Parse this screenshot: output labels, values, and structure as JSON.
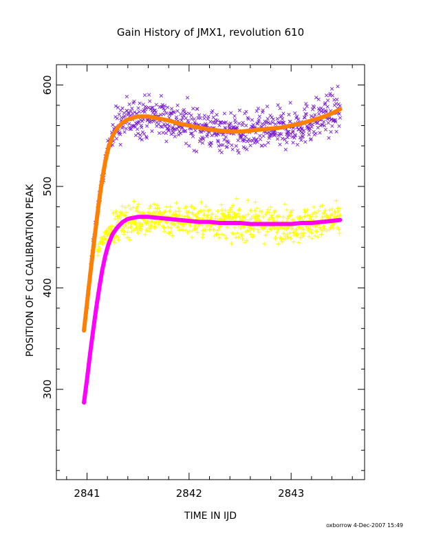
{
  "chart_data": {
    "type": "scatter",
    "title": "Gain History of JMX1, revolution 610",
    "xlabel": "TIME IN IJD",
    "ylabel": "POSITION OF Cd CALIBRATION PEAK",
    "xlim": [
      2840.7,
      2843.72
    ],
    "ylim": [
      211,
      620
    ],
    "xticks": [
      2841,
      2842,
      2843
    ],
    "xtick_labels": [
      "2841",
      "2842",
      "2843"
    ],
    "yticks": [
      300,
      400,
      500,
      600
    ],
    "ytick_labels": [
      "300",
      "400",
      "500",
      "600"
    ],
    "grid": false,
    "legend": "none",
    "footer": "oxborrow  4-Dec-2007 15:49",
    "colors": {
      "upper_points": "#7a1fd0",
      "upper_fit": "#ff7f00",
      "lower_points": "#ffff00",
      "lower_fit": "#ff00ff",
      "axes": "#000000"
    },
    "series": [
      {
        "marker": "x",
        "role": "upper_points",
        "x": [
          2840.98,
          2841.02,
          2841.06,
          2841.1,
          2841.14,
          2841.18,
          2841.22,
          2841.26,
          2841.3,
          2841.4,
          2841.5,
          2841.6,
          2841.7,
          2841.8,
          2841.9,
          2842.0,
          2842.1,
          2842.2,
          2842.3,
          2842.4,
          2842.5,
          2842.6,
          2842.7,
          2842.8,
          2842.9,
          2843.0,
          2843.1,
          2843.2,
          2843.3,
          2843.4,
          2843.48
        ],
        "y": [
          365,
          405,
          440,
          475,
          500,
          525,
          545,
          555,
          560,
          566,
          568,
          570,
          569,
          566,
          563,
          561,
          559,
          557,
          555,
          553,
          553,
          553,
          554,
          555,
          556,
          558,
          561,
          564,
          568,
          572,
          575
        ],
        "scatter": 22
      },
      {
        "marker": "line",
        "role": "upper_fit",
        "x": [
          2840.97,
          2841.0,
          2841.03,
          2841.06,
          2841.09,
          2841.12,
          2841.15,
          2841.18,
          2841.21,
          2841.25,
          2841.3,
          2841.35,
          2841.4,
          2841.5,
          2841.6,
          2841.7,
          2841.8,
          2841.9,
          2842.0,
          2842.1,
          2842.2,
          2842.3,
          2842.4,
          2842.5,
          2842.6,
          2842.7,
          2842.8,
          2842.9,
          2843.0,
          2843.1,
          2843.2,
          2843.3,
          2843.4,
          2843.48
        ],
        "y": [
          358,
          385,
          412,
          438,
          463,
          487,
          508,
          525,
          538,
          550,
          558,
          563,
          566,
          569,
          569,
          567,
          565,
          562,
          560,
          558,
          556,
          555,
          554,
          554,
          555,
          556,
          557,
          558,
          560,
          562,
          565,
          568,
          572,
          576
        ]
      },
      {
        "marker": "plus",
        "role": "lower_points",
        "x": [
          2841.1,
          2841.14,
          2841.18,
          2841.22,
          2841.26,
          2841.3,
          2841.4,
          2841.5,
          2841.6,
          2841.7,
          2841.8,
          2841.9,
          2842.0,
          2842.1,
          2842.2,
          2842.3,
          2842.4,
          2842.5,
          2842.6,
          2842.7,
          2842.8,
          2842.9,
          2843.0,
          2843.1,
          2843.2,
          2843.3,
          2843.4,
          2843.48
        ],
        "y": [
          435,
          445,
          452,
          456,
          460,
          462,
          466,
          468,
          469,
          469,
          468,
          468,
          467,
          466,
          466,
          465,
          465,
          464,
          464,
          464,
          463,
          463,
          463,
          464,
          464,
          465,
          466,
          466
        ],
        "scatter": 18
      },
      {
        "marker": "line",
        "role": "lower_fit",
        "x": [
          2840.97,
          2841.0,
          2841.03,
          2841.06,
          2841.09,
          2841.12,
          2841.15,
          2841.18,
          2841.21,
          2841.25,
          2841.3,
          2841.35,
          2841.4,
          2841.5,
          2841.6,
          2841.7,
          2841.8,
          2841.9,
          2842.0,
          2842.1,
          2842.2,
          2842.3,
          2842.4,
          2842.5,
          2842.6,
          2842.7,
          2842.8,
          2842.9,
          2843.0,
          2843.1,
          2843.2,
          2843.3,
          2843.4,
          2843.48
        ],
        "y": [
          287,
          310,
          335,
          358,
          380,
          400,
          418,
          432,
          443,
          453,
          460,
          465,
          468,
          470,
          470,
          469,
          468,
          467,
          466,
          465,
          465,
          464,
          464,
          464,
          463,
          463,
          463,
          463,
          463,
          464,
          464,
          465,
          466,
          467
        ]
      }
    ]
  }
}
